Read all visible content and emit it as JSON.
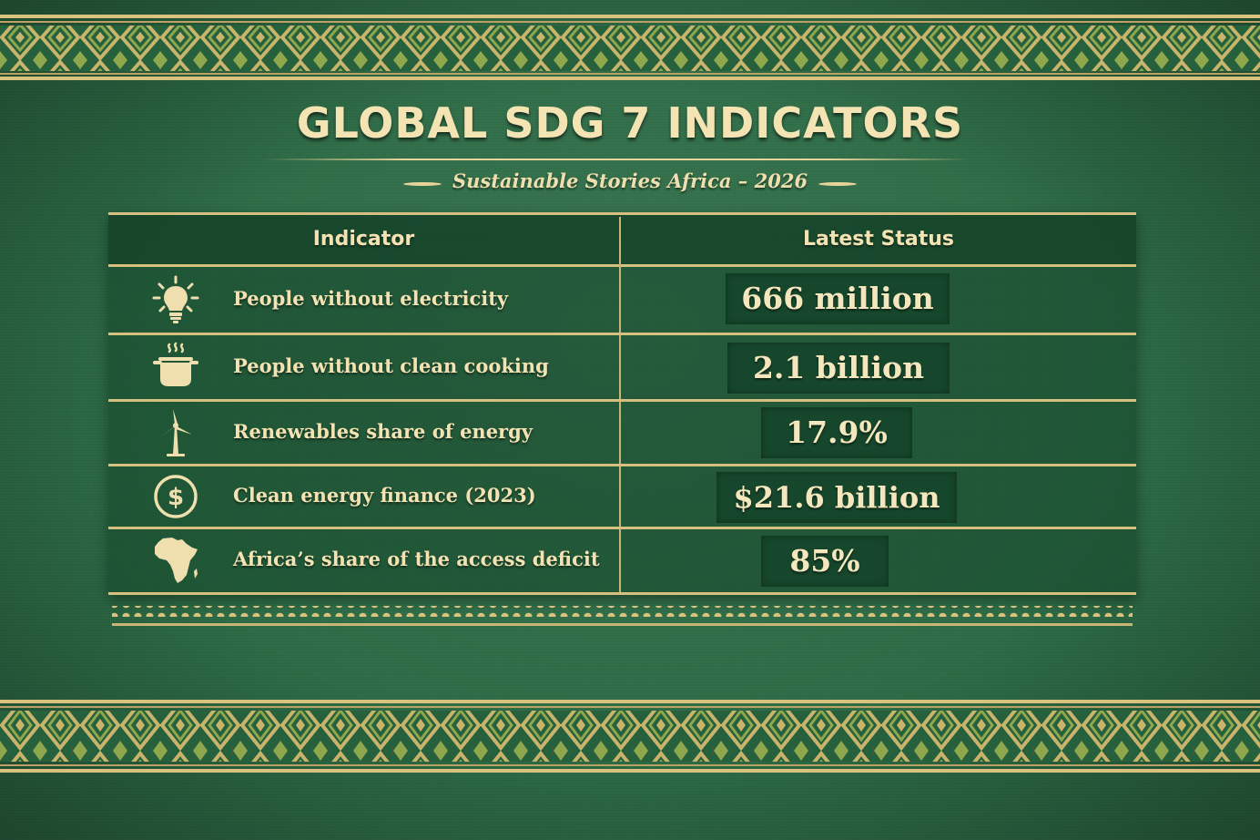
{
  "title": "GLOBAL SDG 7 INDICATORS",
  "subtitle": "Sustainable Stories Africa – 2026",
  "table": {
    "headers": {
      "indicator": "Indicator",
      "status": "Latest Status"
    },
    "rows": [
      {
        "icon": "lightbulb-icon",
        "label": "People without electricity",
        "value": "666 million"
      },
      {
        "icon": "cooking-pot-icon",
        "label": "People without clean cooking",
        "value": "2.1 billion"
      },
      {
        "icon": "wind-turbine-icon",
        "label": "Renewables share of energy",
        "value": "17.9%"
      },
      {
        "icon": "dollar-coin-icon",
        "label": "Clean energy finance (2023)",
        "value": "$21.6 billion"
      },
      {
        "icon": "africa-map-icon",
        "label": "Africa’s share of the access deficit",
        "value": "85%"
      }
    ]
  },
  "colors": {
    "background": "#2c6b45",
    "gold": "#e8d49a",
    "cream_text": "#f3e3b3",
    "value_box": "#16472c"
  }
}
